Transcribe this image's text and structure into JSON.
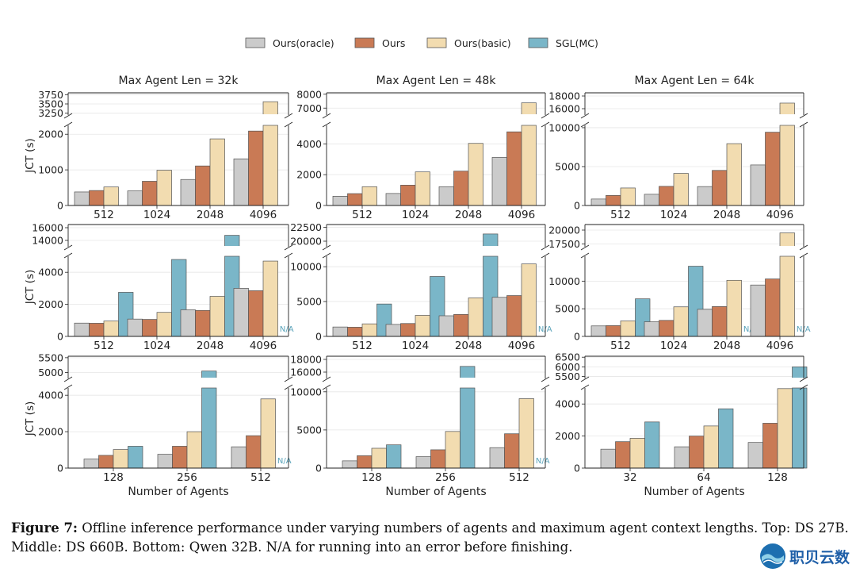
{
  "chart_data": {
    "type": "bar",
    "legend": {
      "placement": "top-center",
      "entries": [
        {
          "name": "Ours(oracle)",
          "color": "#cbcbcb"
        },
        {
          "name": "Ours",
          "color": "#c97a55"
        },
        {
          "name": "Ours(basic)",
          "color": "#f2dcb0"
        },
        {
          "name": "SGL(MC)",
          "color": "#7ab6c8"
        }
      ]
    },
    "column_titles": [
      "Max Agent Len = 32k",
      "Max Agent Len = 48k",
      "Max Agent Len = 64k"
    ],
    "ylabel": "JCT (s)",
    "xlabel": "Number of Agents",
    "na_label": "N/A",
    "panels": [
      {
        "categories": [
          "512",
          "1024",
          "2048",
          "4096"
        ],
        "series": [
          [
            380,
            410,
            730,
            1310
          ],
          [
            420,
            680,
            1110,
            2090
          ],
          [
            520,
            990,
            1870,
            3560
          ],
          [
            null,
            null,
            null,
            null
          ]
        ],
        "lower": {
          "range": [
            0,
            2250
          ],
          "ticks": [
            0,
            1000,
            2000
          ]
        },
        "upper": {
          "range": [
            3200,
            3800
          ],
          "ticks": [
            3250,
            3500,
            3750
          ]
        }
      },
      {
        "categories": [
          "512",
          "1024",
          "2048",
          "4096"
        ],
        "series": [
          [
            600,
            780,
            1220,
            3120
          ],
          [
            770,
            1320,
            2230,
            4780
          ],
          [
            1220,
            2180,
            4030,
            7380
          ],
          [
            null,
            null,
            null,
            null
          ]
        ],
        "lower": {
          "range": [
            0,
            5200
          ],
          "ticks": [
            0,
            2000,
            4000
          ]
        },
        "upper": {
          "range": [
            6500,
            8100
          ],
          "ticks": [
            7000,
            8000
          ]
        }
      },
      {
        "categories": [
          "512",
          "1024",
          "2048",
          "4096"
        ],
        "series": [
          [
            830,
            1440,
            2430,
            5210
          ],
          [
            1290,
            2460,
            4510,
            9420
          ],
          [
            2250,
            4120,
            7950,
            16880
          ],
          [
            null,
            null,
            null,
            null
          ]
        ],
        "lower": {
          "range": [
            0,
            10300
          ],
          "ticks": [
            0,
            5000,
            10000
          ]
        },
        "upper": {
          "range": [
            15000,
            18500
          ],
          "ticks": [
            16000,
            18000
          ]
        }
      },
      {
        "categories": [
          "512",
          "1024",
          "2048",
          "4096"
        ],
        "series": [
          [
            830,
            1080,
            1660,
            3000
          ],
          [
            820,
            1060,
            1620,
            2850
          ],
          [
            960,
            1500,
            2500,
            4700
          ],
          [
            2750,
            4800,
            14800,
            null
          ]
        ],
        "lower": {
          "range": [
            0,
            5000
          ],
          "ticks": [
            0,
            2000,
            4000
          ]
        },
        "upper": {
          "range": [
            13000,
            16500
          ],
          "ticks": [
            14000,
            16000
          ]
        }
      },
      {
        "categories": [
          "512",
          "1024",
          "2048",
          "4096"
        ],
        "series": [
          [
            1350,
            1720,
            2960,
            5610
          ],
          [
            1320,
            1850,
            3150,
            5860
          ],
          [
            1800,
            3020,
            5530,
            10400
          ],
          [
            4650,
            8600,
            21300,
            null
          ]
        ],
        "lower": {
          "range": [
            0,
            11500
          ],
          "ticks": [
            0,
            5000,
            10000
          ]
        },
        "upper": {
          "range": [
            19000,
            23000
          ],
          "ticks": [
            20000,
            22500
          ]
        }
      },
      {
        "categories": [
          "512",
          "1024",
          "2048",
          "4096"
        ],
        "series": [
          [
            1900,
            2650,
            4900,
            9300
          ],
          [
            1950,
            2900,
            5400,
            10400
          ],
          [
            2800,
            5350,
            10150,
            19500
          ],
          [
            6800,
            12700,
            null,
            null
          ]
        ],
        "lower": {
          "range": [
            0,
            14500
          ],
          "ticks": [
            0,
            5000,
            10000
          ]
        },
        "upper": {
          "range": [
            17000,
            21000
          ],
          "ticks": [
            17500,
            20000
          ]
        }
      },
      {
        "categories": [
          "128",
          "256",
          "512"
        ],
        "series": [
          [
            500,
            760,
            1170
          ],
          [
            700,
            1200,
            1780
          ],
          [
            1020,
            2000,
            3800
          ],
          [
            1200,
            5050,
            null
          ]
        ],
        "lower": {
          "range": [
            0,
            4400
          ],
          "ticks": [
            0,
            2000,
            4000
          ]
        },
        "upper": {
          "range": [
            4800,
            5550
          ],
          "ticks": [
            5000,
            5500
          ]
        }
      },
      {
        "categories": [
          "128",
          "256",
          "512"
        ],
        "series": [
          [
            950,
            1500,
            2680
          ],
          [
            1620,
            2400,
            4500
          ],
          [
            2600,
            4800,
            9100
          ],
          [
            3050,
            16900,
            null
          ]
        ],
        "lower": {
          "range": [
            0,
            10500
          ],
          "ticks": [
            0,
            5000,
            10000
          ]
        },
        "upper": {
          "range": [
            15000,
            18500
          ],
          "ticks": [
            16000,
            18000
          ]
        }
      },
      {
        "categories": [
          "32",
          "64",
          "128"
        ],
        "series": [
          [
            1180,
            1330,
            1600
          ],
          [
            1650,
            2000,
            2800
          ],
          [
            1860,
            2630,
            4960
          ],
          [
            2880,
            3700,
            6000
          ]
        ],
        "lower": {
          "range": [
            0,
            5000
          ],
          "ticks": [
            0,
            2000,
            4000
          ]
        },
        "upper": {
          "range": [
            5400,
            6550
          ],
          "ticks": [
            5500,
            6000,
            6500
          ]
        }
      }
    ]
  },
  "caption": {
    "label": "Figure 7:",
    "text": " Offline inference performance under varying numbers of agents and maximum agent context lengths. Top: DS 27B. Middle: DS 660B. Bottom: Qwen 32B. N/A for running into an error before finishing."
  },
  "watermark": {
    "text": "职贝云数"
  }
}
